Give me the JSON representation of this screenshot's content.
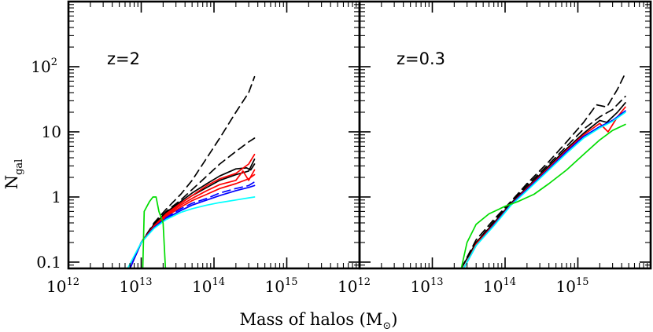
{
  "chart_data": [
    {
      "type": "line",
      "panel_label": "z=2",
      "x_scale": "log",
      "y_scale": "log",
      "xlim": [
        1000000000000.0,
        1e+16
      ],
      "ylim": [
        0.08,
        1000
      ],
      "xticks": [
        {
          "value": 1000000000000.0,
          "base": "10",
          "exp": "12"
        },
        {
          "value": 10000000000000.0,
          "base": "10",
          "exp": "13"
        },
        {
          "value": 100000000000000.0,
          "base": "10",
          "exp": "14"
        },
        {
          "value": 1000000000000000.0,
          "base": "10",
          "exp": "15"
        }
      ],
      "yticks": [
        {
          "value": 0.1,
          "label": "0.1",
          "exp": ""
        },
        {
          "value": 1,
          "label": "1",
          "exp": ""
        },
        {
          "value": 10,
          "label": "10",
          "exp": ""
        },
        {
          "value": 100,
          "label": "10",
          "exp": "2"
        }
      ],
      "series": [
        {
          "color": "#000000",
          "dash": "dashed",
          "x": [
            7000000000000.0,
            10000000000000.0,
            15000000000000.0,
            22000000000000.0,
            35000000000000.0,
            50000000000000.0,
            80000000000000.0,
            120000000000000.0,
            200000000000000.0,
            300000000000000.0,
            360000000000000.0
          ],
          "y": [
            0.08,
            0.2,
            0.4,
            0.65,
            1.1,
            1.8,
            4,
            8,
            20,
            40,
            70
          ]
        },
        {
          "color": "#000000",
          "dash": "dashed",
          "x": [
            7000000000000.0,
            10000000000000.0,
            15000000000000.0,
            22000000000000.0,
            35000000000000.0,
            50000000000000.0,
            80000000000000.0,
            120000000000000.0,
            200000000000000.0,
            300000000000000.0,
            360000000000000.0
          ],
          "y": [
            0.08,
            0.2,
            0.38,
            0.6,
            0.9,
            1.3,
            2.1,
            3.2,
            5,
            7,
            8
          ]
        },
        {
          "color": "#000000",
          "dash": "solid",
          "x": [
            7000000000000.0,
            10000000000000.0,
            15000000000000.0,
            22000000000000.0,
            35000000000000.0,
            50000000000000.0,
            80000000000000.0,
            120000000000000.0,
            200000000000000.0,
            280000000000000.0,
            320000000000000.0,
            360000000000000.0
          ],
          "y": [
            0.08,
            0.2,
            0.38,
            0.58,
            0.85,
            1.15,
            1.6,
            2.1,
            2.7,
            2.8,
            2.6,
            3.2
          ]
        },
        {
          "color": "#000000",
          "dash": "solid",
          "x": [
            7000000000000.0,
            10000000000000.0,
            15000000000000.0,
            22000000000000.0,
            35000000000000.0,
            50000000000000.0,
            80000000000000.0,
            120000000000000.0,
            200000000000000.0,
            300000000000000.0,
            360000000000000.0
          ],
          "y": [
            0.08,
            0.2,
            0.36,
            0.55,
            0.8,
            1.05,
            1.4,
            1.8,
            2.2,
            2.5,
            3.8
          ]
        },
        {
          "color": "#ff0000",
          "dash": "solid",
          "x": [
            7000000000000.0,
            10000000000000.0,
            15000000000000.0,
            22000000000000.0,
            35000000000000.0,
            50000000000000.0,
            80000000000000.0,
            120000000000000.0,
            200000000000000.0,
            300000000000000.0,
            360000000000000.0
          ],
          "y": [
            0.08,
            0.2,
            0.36,
            0.55,
            0.8,
            1.05,
            1.5,
            1.9,
            2.3,
            3.2,
            4.5
          ]
        },
        {
          "color": "#ff0000",
          "dash": "solid",
          "x": [
            7000000000000.0,
            10000000000000.0,
            15000000000000.0,
            22000000000000.0,
            35000000000000.0,
            50000000000000.0,
            80000000000000.0,
            120000000000000.0,
            200000000000000.0,
            250000000000000.0,
            300000000000000.0,
            360000000000000.0
          ],
          "y": [
            0.08,
            0.2,
            0.35,
            0.52,
            0.75,
            0.95,
            1.25,
            1.55,
            1.8,
            2.5,
            1.8,
            2.6
          ]
        },
        {
          "color": "#ff0000",
          "dash": "solid",
          "x": [
            7000000000000.0,
            10000000000000.0,
            15000000000000.0,
            22000000000000.0,
            35000000000000.0,
            50000000000000.0,
            80000000000000.0,
            120000000000000.0,
            200000000000000.0,
            300000000000000.0,
            360000000000000.0
          ],
          "y": [
            0.08,
            0.2,
            0.34,
            0.5,
            0.7,
            0.88,
            1.1,
            1.35,
            1.6,
            1.9,
            2.2
          ]
        },
        {
          "color": "#0000ff",
          "dash": "dashed",
          "x": [
            7000000000000.0,
            10000000000000.0,
            15000000000000.0,
            22000000000000.0,
            35000000000000.0,
            50000000000000.0,
            80000000000000.0,
            120000000000000.0,
            200000000000000.0,
            300000000000000.0,
            360000000000000.0
          ],
          "y": [
            0.08,
            0.2,
            0.34,
            0.48,
            0.66,
            0.8,
            0.95,
            1.15,
            1.35,
            1.5,
            1.7
          ]
        },
        {
          "color": "#0000ff",
          "dash": "solid",
          "x": [
            7000000000000.0,
            10000000000000.0,
            15000000000000.0,
            22000000000000.0,
            35000000000000.0,
            50000000000000.0,
            80000000000000.0,
            120000000000000.0,
            200000000000000.0,
            300000000000000.0,
            360000000000000.0
          ],
          "y": [
            0.08,
            0.2,
            0.34,
            0.47,
            0.62,
            0.75,
            0.9,
            1.05,
            1.25,
            1.4,
            1.5
          ]
        },
        {
          "color": "#00ffff",
          "dash": "solid",
          "x": [
            6500000000000.0,
            10000000000000.0,
            15000000000000.0,
            22000000000000.0,
            35000000000000.0,
            50000000000000.0,
            80000000000000.0,
            120000000000000.0,
            200000000000000.0,
            300000000000000.0,
            360000000000000.0
          ],
          "y": [
            0.08,
            0.2,
            0.33,
            0.45,
            0.58,
            0.66,
            0.75,
            0.82,
            0.9,
            0.97,
            1.0
          ]
        },
        {
          "color": "#00dd00",
          "dash": "solid",
          "x": [
            10500000000000.0,
            11000000000000.0,
            13000000000000.0,
            14500000000000.0,
            16000000000000.0,
            17500000000000.0,
            20000000000000.0,
            21500000000000.0
          ],
          "y": [
            0.08,
            0.6,
            0.85,
            1.0,
            1.0,
            0.6,
            0.4,
            0.08
          ]
        }
      ]
    },
    {
      "type": "line",
      "panel_label": "z=0.3",
      "x_scale": "log",
      "y_scale": "log",
      "xlim": [
        1000000000000.0,
        1e+16
      ],
      "ylim": [
        0.08,
        1000
      ],
      "xticks": [
        {
          "value": 1000000000000.0,
          "base": "10",
          "exp": "12"
        },
        {
          "value": 10000000000000.0,
          "base": "10",
          "exp": "13"
        },
        {
          "value": 100000000000000.0,
          "base": "10",
          "exp": "14"
        },
        {
          "value": 1000000000000000.0,
          "base": "10",
          "exp": "15"
        }
      ],
      "series": [
        {
          "color": "#000000",
          "dash": "dashed",
          "x": [
            25000000000000.0,
            40000000000000.0,
            70000000000000.0,
            120000000000000.0,
            200000000000000.0,
            400000000000000.0,
            700000000000000.0,
            1200000000000000.0,
            1800000000000000.0,
            2500000000000000.0,
            3500000000000000.0,
            4500000000000000.0
          ],
          "y": [
            0.08,
            0.22,
            0.45,
            0.85,
            1.6,
            3.5,
            7,
            14,
            26,
            24,
            45,
            80
          ]
        },
        {
          "color": "#000000",
          "dash": "dashed",
          "x": [
            25000000000000.0,
            40000000000000.0,
            70000000000000.0,
            120000000000000.0,
            200000000000000.0,
            400000000000000.0,
            700000000000000.0,
            1200000000000000.0,
            2000000000000000.0,
            3000000000000000.0,
            4500000000000000.0
          ],
          "y": [
            0.08,
            0.2,
            0.42,
            0.82,
            1.5,
            3.2,
            6,
            11,
            17,
            22,
            35
          ]
        },
        {
          "color": "#000000",
          "dash": "solid",
          "x": [
            25000000000000.0,
            40000000000000.0,
            70000000000000.0,
            120000000000000.0,
            200000000000000.0,
            400000000000000.0,
            700000000000000.0,
            1200000000000000.0,
            2000000000000000.0,
            2500000000000000.0,
            3500000000000000.0,
            4500000000000000.0
          ],
          "y": [
            0.08,
            0.2,
            0.4,
            0.8,
            1.4,
            3,
            5.5,
            9.5,
            15,
            14,
            20,
            28
          ]
        },
        {
          "color": "#ff0000",
          "dash": "solid",
          "x": [
            27000000000000.0,
            40000000000000.0,
            70000000000000.0,
            120000000000000.0,
            200000000000000.0,
            400000000000000.0,
            700000000000000.0,
            1200000000000000.0,
            2000000000000000.0,
            2600000000000000.0,
            3500000000000000.0,
            4500000000000000.0
          ],
          "y": [
            0.08,
            0.19,
            0.38,
            0.77,
            1.35,
            2.8,
            5.2,
            9,
            13.5,
            10,
            17,
            24
          ]
        },
        {
          "color": "#0000ff",
          "dash": "solid",
          "x": [
            27000000000000.0,
            40000000000000.0,
            70000000000000.0,
            120000000000000.0,
            200000000000000.0,
            400000000000000.0,
            700000000000000.0,
            1200000000000000.0,
            2000000000000000.0,
            3000000000000000.0,
            4500000000000000.0
          ],
          "y": [
            0.08,
            0.18,
            0.37,
            0.76,
            1.3,
            2.7,
            5,
            8.5,
            12,
            15,
            21
          ]
        },
        {
          "color": "#00ffff",
          "dash": "solid",
          "x": [
            27000000000000.0,
            40000000000000.0,
            70000000000000.0,
            120000000000000.0,
            200000000000000.0,
            400000000000000.0,
            700000000000000.0,
            1200000000000000.0,
            2000000000000000.0,
            3000000000000000.0,
            4500000000000000.0
          ],
          "y": [
            0.08,
            0.18,
            0.36,
            0.74,
            1.25,
            2.6,
            4.7,
            8,
            11.5,
            14.5,
            20
          ]
        },
        {
          "color": "#00dd00",
          "dash": "solid",
          "x": [
            25000000000000.0,
            30000000000000.0,
            40000000000000.0,
            60000000000000.0,
            100000000000000.0,
            150000000000000.0,
            250000000000000.0,
            400000000000000.0,
            700000000000000.0,
            1200000000000000.0,
            2000000000000000.0,
            3000000000000000.0,
            4500000000000000.0
          ],
          "y": [
            0.08,
            0.2,
            0.38,
            0.55,
            0.72,
            0.85,
            1.1,
            1.6,
            2.6,
            4.5,
            7.5,
            10.5,
            13
          ]
        }
      ]
    }
  ],
  "axes": {
    "ylabel_main": "N",
    "ylabel_sub": "gal",
    "xlabel_pre": "Mass of halos (M",
    "xlabel_sub": "⊙",
    "xlabel_post": ")"
  }
}
